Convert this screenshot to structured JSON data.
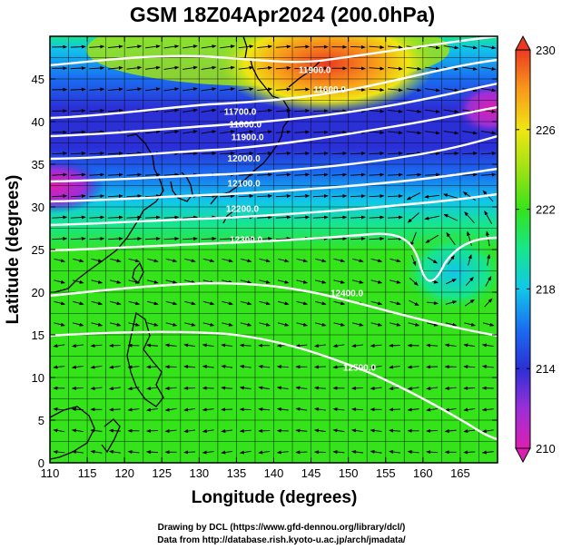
{
  "title": "GSM 18Z04Apr2024 (200.0hPa)",
  "x_axis_label": "Longitude (degrees)",
  "y_axis_label": "Latitude  (degrees)",
  "credits": [
    "Drawing by DCL (https://www.gfd-dennou.org/library/dcl/)",
    "Data from http://database.rish.kyoto-u.ac.jp/arch/jmadata/"
  ],
  "chart_data": {
    "type": "heatmap",
    "title": "GSM 18Z04Apr2024 (200.0hPa)",
    "xlabel": "Longitude (degrees)",
    "ylabel": "Latitude  (degrees)",
    "xlim": [
      110,
      170
    ],
    "ylim": [
      0,
      50
    ],
    "xticks": [
      "110",
      "115",
      "120",
      "125",
      "130",
      "135",
      "140",
      "145",
      "150",
      "155",
      "160",
      "165"
    ],
    "yticks": [
      "0",
      "5",
      "10",
      "15",
      "20",
      "25",
      "30",
      "35",
      "40",
      "45"
    ],
    "grid": true,
    "colorbar": {
      "range": [
        210,
        230
      ],
      "ticks": [
        "210",
        "214",
        "218",
        "222",
        "226",
        "230"
      ],
      "colors": [
        "#dd1fb0",
        "#9b2fd8",
        "#2b2fd6",
        "#1a6ef0",
        "#11c6ea",
        "#17e68c",
        "#35e31a",
        "#9fe214",
        "#efe614",
        "#f89a1a",
        "#ec3a22"
      ]
    },
    "contour_labels": [
      {
        "text": "11900.0",
        "lon": 145.5,
        "lat": 45.7
      },
      {
        "text": "11600.0",
        "lon": 147.5,
        "lat": 43.4
      },
      {
        "text": "11700.0",
        "lon": 135.5,
        "lat": 40.8
      },
      {
        "text": "11800.0",
        "lon": 136.2,
        "lat": 39.3
      },
      {
        "text": "11900.0",
        "lon": 136.5,
        "lat": 37.8
      },
      {
        "text": "12000.0",
        "lon": 136.0,
        "lat": 35.3
      },
      {
        "text": "12100.0",
        "lon": 136.0,
        "lat": 32.4
      },
      {
        "text": "12200.0",
        "lon": 135.8,
        "lat": 29.4
      },
      {
        "text": "12300.0",
        "lon": 136.3,
        "lat": 25.8
      },
      {
        "text": "12400.0",
        "lon": 149.8,
        "lat": 19.5
      },
      {
        "text": "12500.0",
        "lon": 151.5,
        "lat": 10.8
      }
    ]
  },
  "colors": {
    "contour": "#ffffff",
    "coast": "#000000",
    "vector": "#000000"
  }
}
